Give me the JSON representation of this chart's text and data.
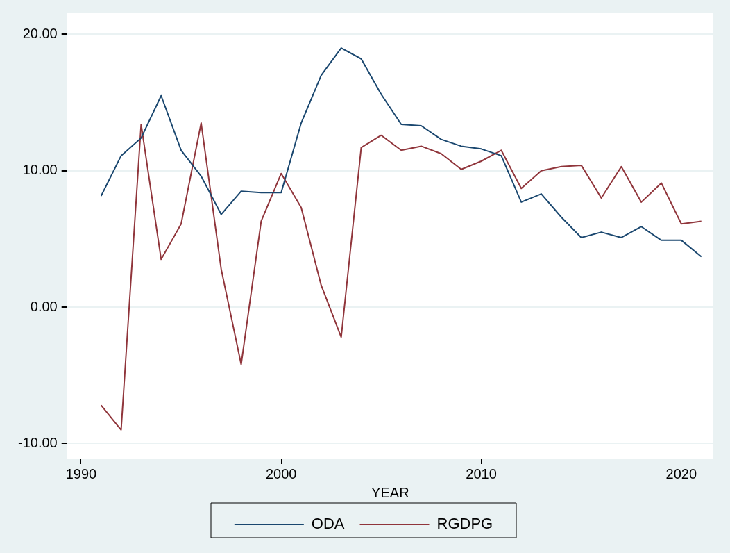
{
  "chart_data": {
    "type": "line",
    "xlabel": "YEAR",
    "x": [
      1991,
      1992,
      1993,
      1994,
      1995,
      1996,
      1997,
      1998,
      1999,
      2000,
      2001,
      2002,
      2003,
      2004,
      2005,
      2006,
      2007,
      2008,
      2009,
      2010,
      2011,
      2012,
      2013,
      2014,
      2015,
      2016,
      2017,
      2018,
      2019,
      2020,
      2021
    ],
    "series": [
      {
        "name": "ODA",
        "color": "#1a476f",
        "values": [
          8.15,
          11.1,
          12.4,
          15.5,
          11.5,
          9.6,
          6.8,
          8.5,
          8.4,
          8.4,
          13.5,
          17.0,
          19.0,
          18.2,
          15.6,
          13.4,
          13.3,
          12.3,
          11.8,
          11.6,
          11.1,
          7.7,
          8.3,
          6.6,
          5.1,
          5.5,
          5.1,
          5.9,
          4.9,
          4.9,
          3.7
        ]
      },
      {
        "name": "RGDPG",
        "color": "#90353b",
        "values": [
          -7.2,
          -9.0,
          13.4,
          3.5,
          6.1,
          13.5,
          2.8,
          -4.2,
          6.3,
          9.8,
          7.3,
          1.6,
          -2.2,
          11.7,
          12.6,
          11.5,
          11.8,
          11.25,
          10.1,
          10.7,
          11.5,
          8.7,
          10.0,
          10.3,
          10.4,
          8.0,
          10.3,
          7.7,
          9.1,
          6.1,
          6.3
        ]
      }
    ],
    "xlim": [
      1989.3,
      2021.6
    ],
    "xticks": [
      1990,
      2000,
      2010,
      2020
    ],
    "ylim": [
      -11.1,
      21.6
    ],
    "yticks": [
      {
        "value": -10,
        "label": "-10.00"
      },
      {
        "value": 0,
        "label": "0.00"
      },
      {
        "value": 10,
        "label": "10.00"
      },
      {
        "value": 20,
        "label": "20.00"
      }
    ],
    "grid": "y",
    "legend": "bottom",
    "marker": "none",
    "line_style": "solid"
  }
}
